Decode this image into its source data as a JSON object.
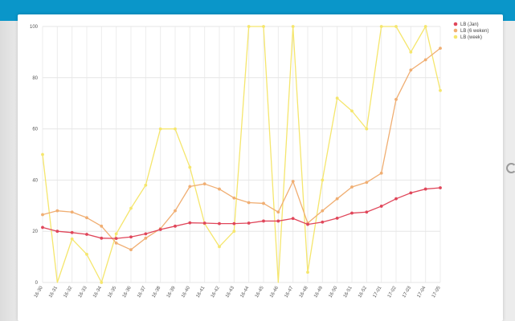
{
  "chart_data": {
    "type": "line",
    "categories": [
      "16-30",
      "16-31",
      "16-32",
      "16-33",
      "16-34",
      "16-35",
      "16-36",
      "16-37",
      "16-38",
      "16-39",
      "16-40",
      "16-41",
      "16-42",
      "16-43",
      "16-44",
      "16-45",
      "16-46",
      "16-47",
      "16-48",
      "16-49",
      "16-50",
      "16-51",
      "16-52",
      "17-01",
      "17-02",
      "17-03",
      "17-04",
      "17-05"
    ],
    "series": [
      {
        "name": "LB (Jan)",
        "color": "#e0465a",
        "values": [
          21.5,
          20,
          19.5,
          18.8,
          17.3,
          17.2,
          17.8,
          19,
          20.7,
          22,
          23.3,
          23.2,
          23,
          23,
          23.2,
          24,
          24,
          25,
          22.7,
          23.6,
          25.1,
          27.1,
          27.5,
          29.8,
          32.7,
          35,
          36.5,
          37
        ]
      },
      {
        "name": "LB (6 weken)",
        "color": "#f0ae72",
        "values": [
          26.5,
          28,
          27.5,
          25.3,
          22,
          15.4,
          12.8,
          17.3,
          21,
          28,
          37.5,
          38.5,
          36.5,
          33,
          31.2,
          30.9,
          27.5,
          39.5,
          23.2,
          28,
          32.7,
          37.3,
          39.1,
          42.7,
          71.5,
          83,
          87,
          91.5
        ]
      },
      {
        "name": "LB (week)",
        "color": "#f5e66d",
        "values": [
          50,
          -12,
          17,
          11,
          0,
          19,
          29,
          38,
          60,
          60,
          45,
          23,
          14,
          20,
          100,
          100,
          -10,
          100,
          4,
          40,
          72,
          67,
          60,
          100,
          100,
          90,
          100,
          75
        ]
      }
    ],
    "yticks": [
      0,
      20,
      40,
      60,
      80,
      100
    ],
    "ylim": [
      0,
      100
    ],
    "grid": true,
    "legend_position": "top-right",
    "title": "",
    "xlabel": "",
    "ylabel": ""
  }
}
